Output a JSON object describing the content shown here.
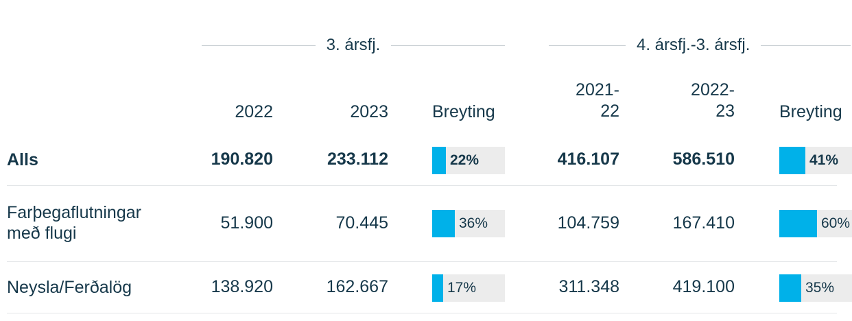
{
  "groups": [
    {
      "title": "3. ársfj."
    },
    {
      "title": "4. ársfj.-3. ársfj."
    }
  ],
  "columns": [
    {
      "label": "2022"
    },
    {
      "label": "2023"
    },
    {
      "label": "Breyting"
    },
    {
      "label_line1": "2021-",
      "label_line2": "22"
    },
    {
      "label_line1": "2022-",
      "label_line2": "23"
    },
    {
      "label": "Breyting"
    }
  ],
  "rows": [
    {
      "label_line1": "Alls",
      "label_line2": "",
      "bold": true,
      "q3_2022": "190.820",
      "q3_2023": "233.112",
      "q3_change_pct": 22,
      "q3_change": "22%",
      "ytd_2021_22": "416.107",
      "ytd_2022_23": "586.510",
      "ytd_change_pct": 41,
      "ytd_change": "41%"
    },
    {
      "label_line1": "Farþegaflutningar",
      "label_line2": "með flugi",
      "bold": false,
      "q3_2022": "51.900",
      "q3_2023": "70.445",
      "q3_change_pct": 36,
      "q3_change": "36%",
      "ytd_2021_22": "104.759",
      "ytd_2022_23": "167.410",
      "ytd_change_pct": 60,
      "ytd_change": "60%"
    },
    {
      "label_line1": "Neysla/Ferðalög",
      "label_line2": "",
      "bold": false,
      "q3_2022": "138.920",
      "q3_2023": "162.667",
      "q3_change_pct": 17,
      "q3_change": "17%",
      "ytd_2021_22": "311.348",
      "ytd_2022_23": "419.100",
      "ytd_change_pct": 35,
      "ytd_change": "35%"
    }
  ],
  "colors": {
    "text": "#16384a",
    "bar_fill": "#00b1e9",
    "bar_track": "#ececec",
    "rule": "#c9cfd3"
  }
}
